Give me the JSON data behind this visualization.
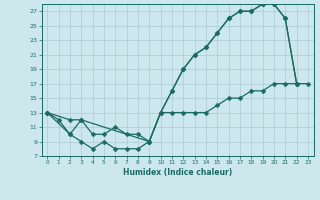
{
  "xlabel": "Humidex (Indice chaleur)",
  "bg_color": "#cce8ec",
  "grid_color": "#b0d0d8",
  "line_color": "#1a6b60",
  "xlim": [
    -0.5,
    23.5
  ],
  "ylim": [
    7,
    28
  ],
  "xticks": [
    0,
    1,
    2,
    3,
    4,
    5,
    6,
    7,
    8,
    9,
    10,
    11,
    12,
    13,
    14,
    15,
    16,
    17,
    18,
    19,
    20,
    21,
    22,
    23
  ],
  "yticks": [
    7,
    9,
    11,
    13,
    15,
    17,
    19,
    21,
    23,
    25,
    27
  ],
  "line1_x": [
    0,
    1,
    2,
    3,
    4,
    5,
    6,
    7,
    8,
    9,
    10,
    11,
    12,
    13,
    14,
    15,
    16,
    17,
    18,
    19,
    20,
    21,
    22
  ],
  "line1_y": [
    13,
    12,
    10,
    9,
    8,
    9,
    8,
    8,
    8,
    9,
    13,
    16,
    19,
    21,
    22,
    24,
    26,
    27,
    27,
    28,
    28,
    26,
    17
  ],
  "line2_x": [
    0,
    2,
    3,
    4,
    5,
    6,
    7,
    8,
    9,
    10,
    11,
    12,
    13,
    14,
    15,
    16,
    17,
    18,
    19,
    20,
    21,
    22
  ],
  "line2_y": [
    13,
    10,
    12,
    10,
    10,
    11,
    10,
    10,
    9,
    13,
    16,
    19,
    21,
    22,
    24,
    26,
    27,
    27,
    28,
    28,
    26,
    17
  ],
  "line3_x": [
    0,
    2,
    3,
    9,
    10,
    11,
    12,
    13,
    14,
    15,
    16,
    17,
    18,
    19,
    20,
    21,
    22,
    23
  ],
  "line3_y": [
    13,
    12,
    12,
    9,
    13,
    13,
    13,
    13,
    13,
    14,
    15,
    15,
    16,
    16,
    17,
    17,
    17,
    17
  ]
}
